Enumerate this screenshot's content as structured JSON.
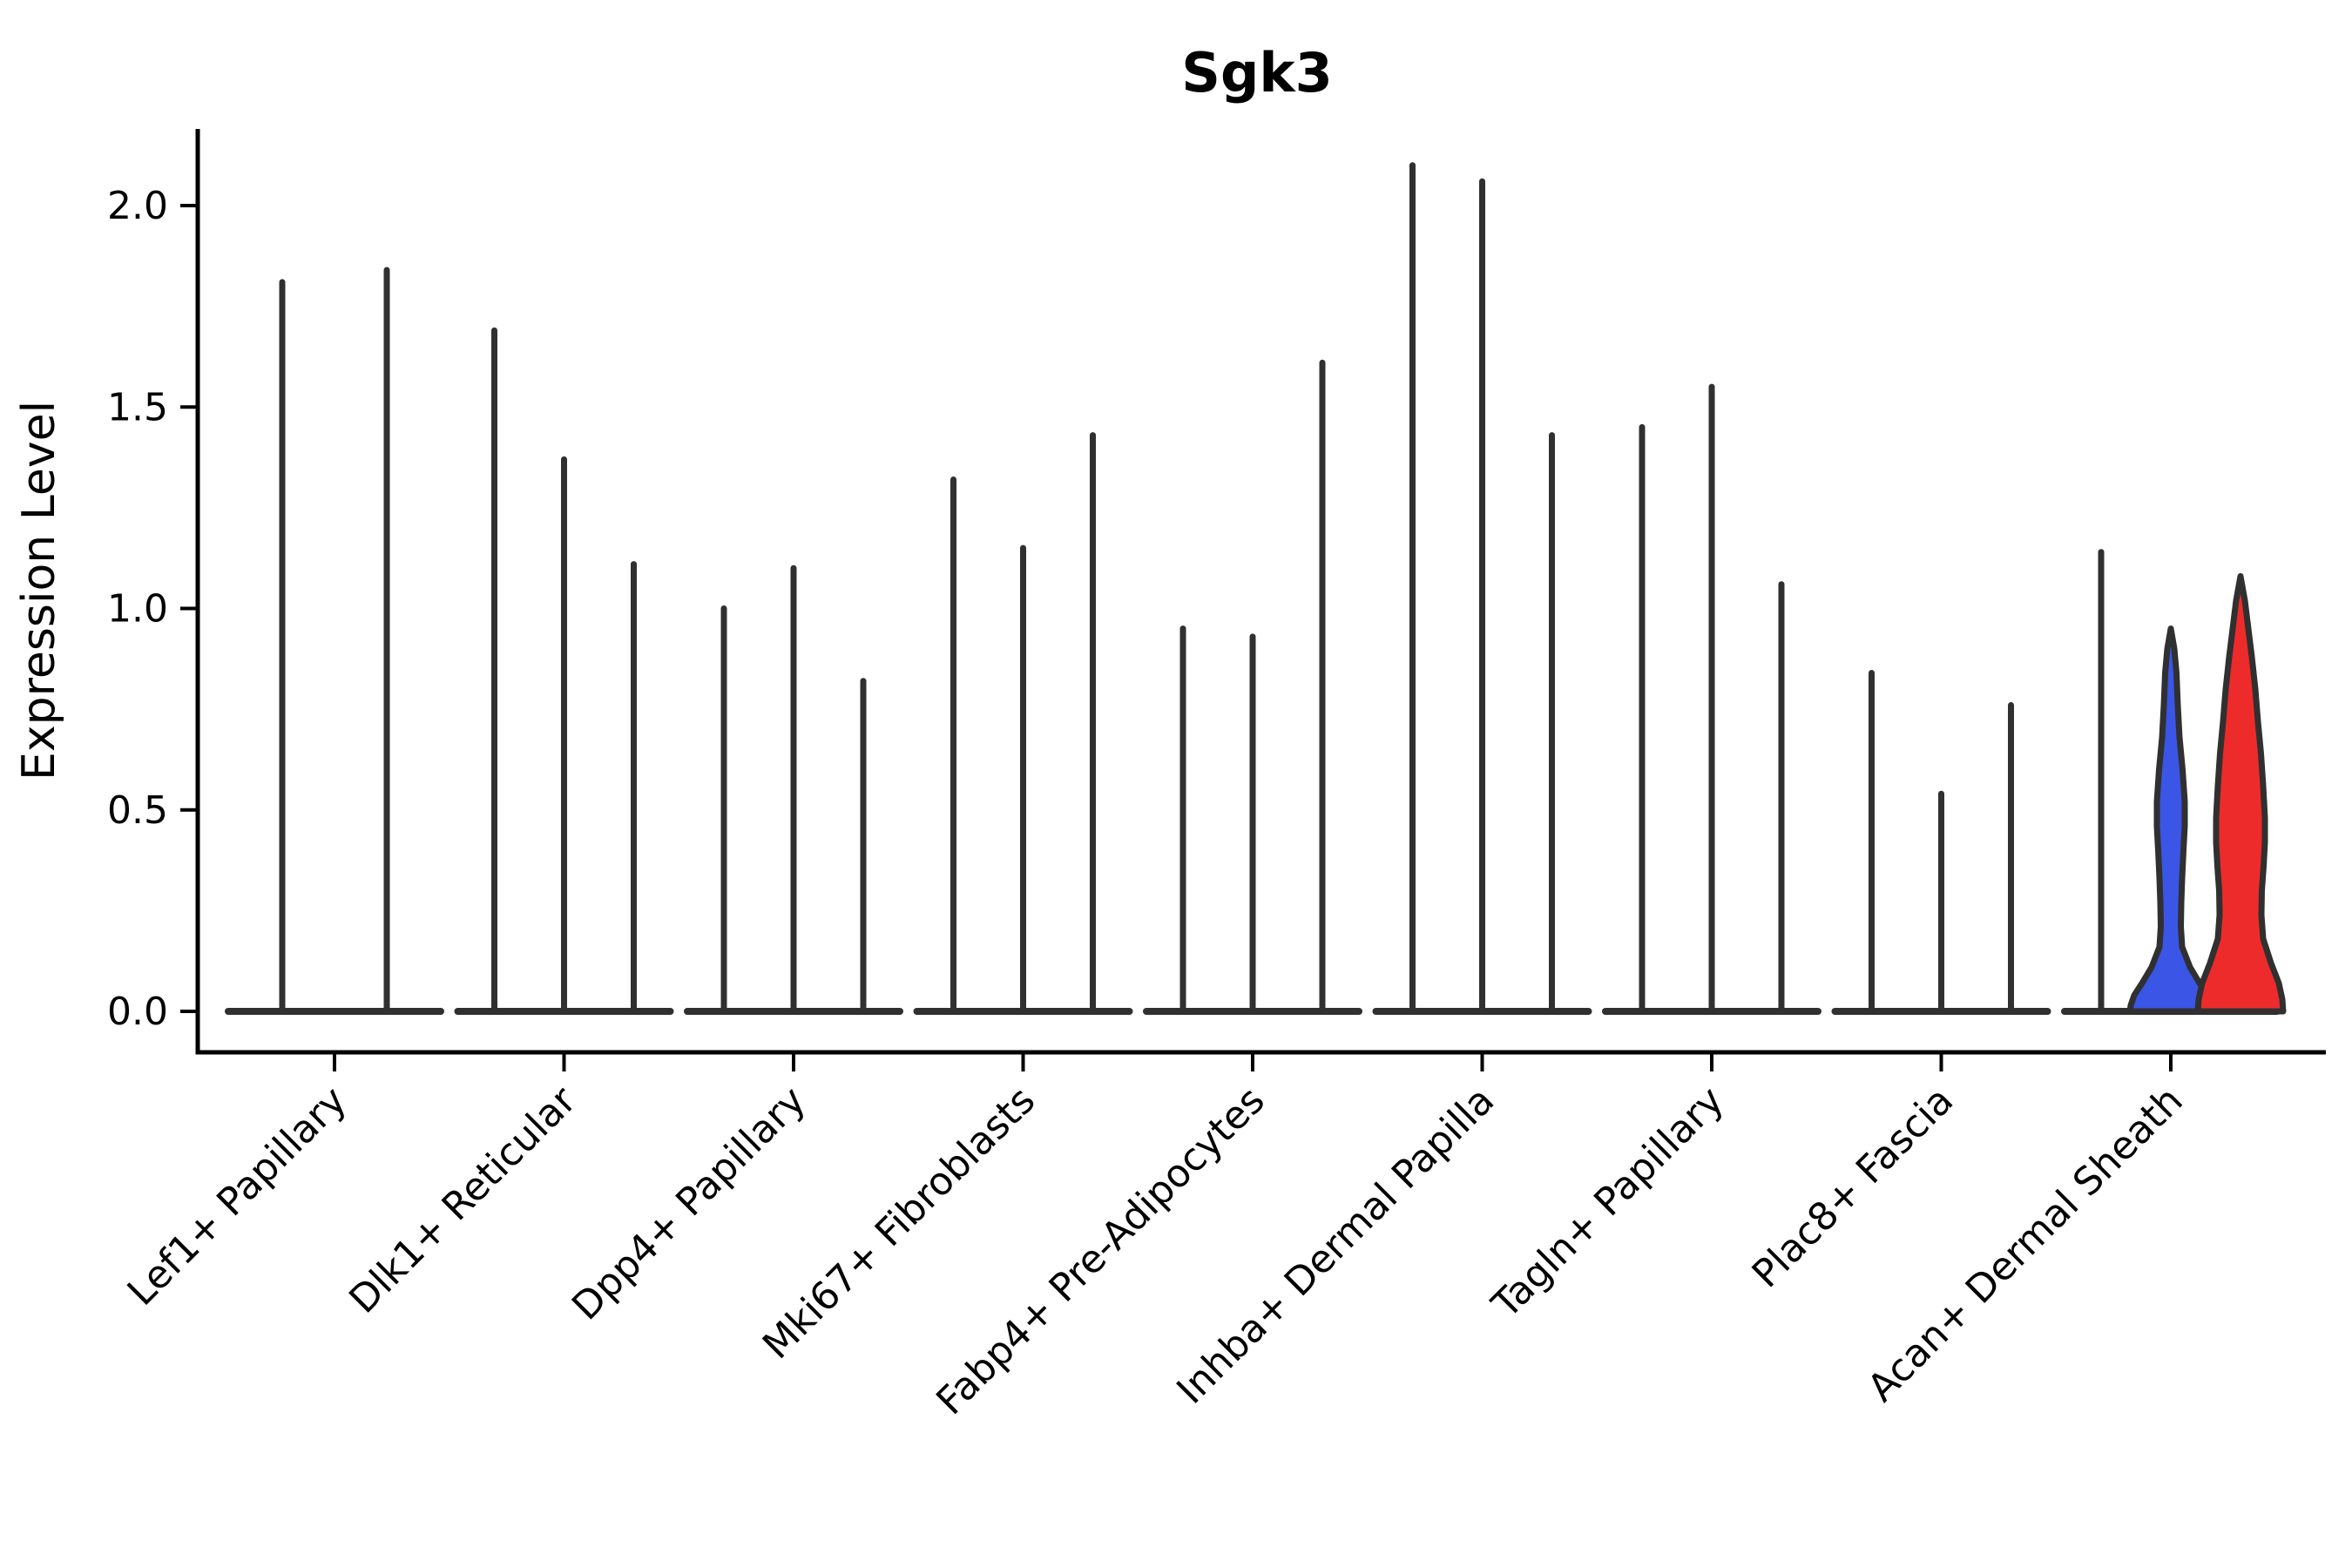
{
  "title": "Sgk3",
  "chart_data": {
    "type": "violin",
    "title": "Sgk3",
    "xlabel": "",
    "ylabel": "Expression Level",
    "ylim": [
      0,
      2.28
    ],
    "grid": false,
    "legend": null,
    "yticks": [
      {
        "value": 0.0,
        "label": "0.0"
      },
      {
        "value": 0.5,
        "label": "0.5"
      },
      {
        "value": 1.0,
        "label": "1.0"
      },
      {
        "value": 1.5,
        "label": "1.5"
      },
      {
        "value": 2.0,
        "label": "2.0"
      }
    ],
    "categories": [
      "Lef1+ Papillary",
      "Dlk1+ Reticular",
      "Dpp4+ Papillary",
      "Mki67+ Fibroblasts",
      "Fabp4+ Pre-Adipocytes",
      "Inhba+ Dermal Papilla",
      "Tagln+ Papillary",
      "Plac8+ Fascia",
      "Acan+ Dermal Sheath"
    ],
    "groups": [
      {
        "label": "Lef1+ Papillary",
        "violins": [
          {
            "shape": "spike",
            "max": 1.81
          },
          {
            "shape": "spike",
            "max": 1.84
          }
        ]
      },
      {
        "label": "Dlk1+ Reticular",
        "violins": [
          {
            "shape": "spike",
            "max": 1.69
          },
          {
            "shape": "spike",
            "max": 1.37
          },
          {
            "shape": "spike",
            "max": 1.11
          }
        ]
      },
      {
        "label": "Dpp4+ Papillary",
        "violins": [
          {
            "shape": "spike",
            "max": 1.0
          },
          {
            "shape": "spike",
            "max": 1.1
          },
          {
            "shape": "spike",
            "max": 0.82
          }
        ]
      },
      {
        "label": "Mki67+ Fibroblasts",
        "violins": [
          {
            "shape": "spike",
            "max": 1.32
          },
          {
            "shape": "spike",
            "max": 1.15
          },
          {
            "shape": "spike",
            "max": 1.43
          }
        ]
      },
      {
        "label": "Fabp4+ Pre-Adipocytes",
        "violins": [
          {
            "shape": "spike",
            "max": 0.95
          },
          {
            "shape": "spike",
            "max": 0.93
          },
          {
            "shape": "spike",
            "max": 1.61
          }
        ]
      },
      {
        "label": "Inhba+ Dermal Papilla",
        "violins": [
          {
            "shape": "spike",
            "max": 2.1
          },
          {
            "shape": "spike",
            "max": 2.06
          },
          {
            "shape": "spike",
            "max": 1.43
          }
        ]
      },
      {
        "label": "Tagln+ Papillary",
        "violins": [
          {
            "shape": "spike",
            "max": 1.45
          },
          {
            "shape": "spike",
            "max": 1.55
          },
          {
            "shape": "spike",
            "max": 1.06
          }
        ]
      },
      {
        "label": "Plac8+ Fascia",
        "violins": [
          {
            "shape": "spike",
            "max": 0.84
          },
          {
            "shape": "spike",
            "max": 0.54
          },
          {
            "shape": "spike",
            "max": 0.76
          }
        ]
      },
      {
        "label": "Acan+ Dermal Sheath",
        "violins": [
          {
            "shape": "spike",
            "max": 1.14
          },
          {
            "shape": "violin",
            "max": 0.95,
            "fill": "#3B55E6",
            "profile": [
              [
                0.95,
                0
              ],
              [
                0.9,
                4
              ],
              [
                0.84,
                6.5
              ],
              [
                0.76,
                8
              ],
              [
                0.68,
                10
              ],
              [
                0.6,
                13.5
              ],
              [
                0.52,
                16
              ],
              [
                0.46,
                16
              ],
              [
                0.4,
                14.5
              ],
              [
                0.33,
                13
              ],
              [
                0.27,
                12
              ],
              [
                0.21,
                11.5
              ],
              [
                0.16,
                13
              ],
              [
                0.11,
                22
              ],
              [
                0.07,
                33
              ],
              [
                0.04,
                42
              ],
              [
                0.015,
                46
              ],
              [
                0,
                47
              ]
            ]
          },
          {
            "shape": "violin",
            "max": 1.08,
            "fill": "#EE2B2B",
            "profile": [
              [
                1.08,
                0
              ],
              [
                1.02,
                5
              ],
              [
                0.95,
                9
              ],
              [
                0.88,
                13
              ],
              [
                0.8,
                17
              ],
              [
                0.72,
                20
              ],
              [
                0.64,
                23.5
              ],
              [
                0.56,
                26
              ],
              [
                0.48,
                28
              ],
              [
                0.42,
                28
              ],
              [
                0.36,
                26.5
              ],
              [
                0.3,
                24.5
              ],
              [
                0.24,
                24
              ],
              [
                0.18,
                26
              ],
              [
                0.12,
                35
              ],
              [
                0.07,
                44
              ],
              [
                0.03,
                48
              ],
              [
                0,
                49
              ]
            ]
          }
        ]
      }
    ],
    "colors": {
      "violin_outline": "#303030",
      "axis": "#000000",
      "blue_violin": "#3B55E6",
      "red_violin": "#EE2B2B",
      "background": "#ffffff"
    }
  }
}
